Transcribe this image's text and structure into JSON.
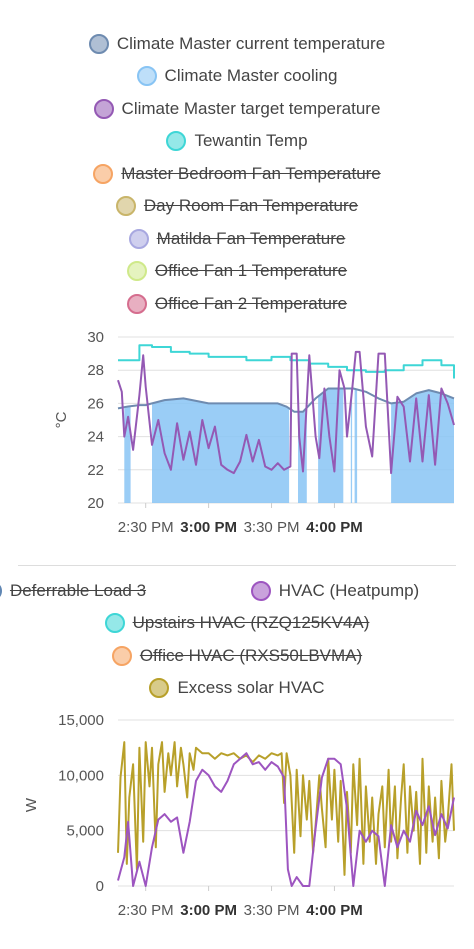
{
  "colors": {
    "current": "#6e8bb0",
    "cooling": "#88c4f4",
    "target": "#9459b4",
    "tewantin": "#3ed6d6",
    "master_fan": "#f6a463",
    "day_fan": "#c9b56a",
    "matilda": "#a8a8e0",
    "office1": "#cfe98a",
    "office2": "#d56d8e",
    "deferrable": "#5f86b3",
    "hvac": "#9d55c0",
    "upstairs": "#3ed6d6",
    "office_hvac": "#f6a463",
    "excess": "#b8a02a"
  },
  "chart_data": [
    {
      "type": "line",
      "ylabel": "°C",
      "ylim": [
        20,
        30
      ],
      "yticks": [
        "30",
        "28",
        "26",
        "24",
        "22",
        "20"
      ],
      "xticks": [
        {
          "label": "2:30 PM",
          "bold": false
        },
        {
          "label": "3:00 PM",
          "bold": true
        },
        {
          "label": "3:30 PM",
          "bold": false
        },
        {
          "label": "4:00 PM",
          "bold": true
        }
      ],
      "xlim_minutes": [
        14.25,
        16.95
      ],
      "legend": [
        {
          "name": "Climate Master current temperature",
          "color_key": "current",
          "hidden": false
        },
        {
          "name": "Climate Master cooling",
          "color_key": "cooling",
          "hidden": false
        },
        {
          "name": "Climate Master target temperature",
          "color_key": "target",
          "hidden": false
        },
        {
          "name": "Tewantin Temp",
          "color_key": "tewantin",
          "hidden": false
        },
        {
          "name": "Master Bedroom Fan Temperature",
          "color_key": "master_fan",
          "hidden": true
        },
        {
          "name": "Day Room Fan Temperature",
          "color_key": "day_fan",
          "hidden": true
        },
        {
          "name": "Matilda Fan Temperature",
          "color_key": "matilda",
          "hidden": true
        },
        {
          "name": "Office Fan 1 Temperature",
          "color_key": "office1",
          "hidden": true
        },
        {
          "name": "Office Fan 2 Temperature",
          "color_key": "office2",
          "hidden": true
        }
      ],
      "cooling_spans_hours": [
        [
          14.33,
          14.38
        ],
        [
          14.55,
          15.64
        ],
        [
          15.71,
          15.78
        ],
        [
          15.87,
          16.07
        ],
        [
          16.13,
          16.14
        ],
        [
          16.16,
          16.18
        ],
        [
          16.45,
          16.95
        ]
      ],
      "series": [
        {
          "name": "Climate Master current temperature",
          "x": [
            14.28,
            14.35,
            14.45,
            14.5,
            14.55,
            14.65,
            14.8,
            15.0,
            15.2,
            15.4,
            15.55,
            15.62,
            15.68,
            15.75,
            15.85,
            15.95,
            16.05,
            16.15,
            16.25,
            16.35,
            16.45,
            16.55,
            16.65,
            16.75,
            16.85,
            16.95
          ],
          "y": [
            25.7,
            25.8,
            25.9,
            25.9,
            26.0,
            26.2,
            26.3,
            26.0,
            26.0,
            26.0,
            26.0,
            25.8,
            25.5,
            25.5,
            26.3,
            26.9,
            26.9,
            26.9,
            26.7,
            26.3,
            26.0,
            26.1,
            26.6,
            26.8,
            26.6,
            26.3
          ]
        },
        {
          "name": "Tewantin Temp",
          "x": [
            14.28,
            14.44,
            14.45,
            14.55,
            14.7,
            14.85,
            15.0,
            15.15,
            15.3,
            15.5,
            15.65,
            15.8,
            15.95,
            16.1,
            16.25,
            16.4,
            16.55,
            16.7,
            16.85,
            16.95
          ],
          "y": [
            28.6,
            28.6,
            29.5,
            29.4,
            29.1,
            29.0,
            28.8,
            28.8,
            28.6,
            28.8,
            28.6,
            28.4,
            28.2,
            28.0,
            27.9,
            28.0,
            28.3,
            28.6,
            28.3,
            27.5
          ]
        },
        {
          "name": "Climate Master target temperature",
          "x": [
            14.28,
            14.31,
            14.33,
            14.36,
            14.4,
            14.45,
            14.48,
            14.5,
            14.55,
            14.6,
            14.65,
            14.7,
            14.75,
            14.8,
            14.85,
            14.9,
            14.95,
            15.0,
            15.05,
            15.1,
            15.15,
            15.2,
            15.25,
            15.3,
            15.35,
            15.4,
            15.45,
            15.5,
            15.55,
            15.6,
            15.65,
            15.66,
            15.7,
            15.72,
            15.75,
            15.8,
            15.85,
            15.88,
            15.92,
            15.96,
            16.0,
            16.04,
            16.08,
            16.1,
            16.14,
            16.17,
            16.2,
            16.25,
            16.3,
            16.35,
            16.4,
            16.45,
            16.5,
            16.55,
            16.6,
            16.65,
            16.7,
            16.75,
            16.8,
            16.85,
            16.9,
            16.95
          ],
          "y": [
            27.4,
            26.7,
            24.0,
            25.2,
            23.2,
            26.5,
            28.9,
            27.0,
            23.5,
            25.0,
            23.0,
            22.0,
            24.8,
            22.6,
            24.3,
            22.3,
            25.0,
            23.3,
            24.6,
            22.3,
            22.0,
            21.8,
            22.5,
            24.1,
            22.5,
            23.8,
            22.2,
            22.0,
            22.4,
            22.0,
            22.2,
            29.0,
            29.0,
            24.0,
            21.9,
            28.9,
            24.0,
            22.7,
            26.9,
            24.0,
            21.9,
            28.0,
            26.9,
            24.0,
            26.8,
            29.1,
            29.1,
            24.6,
            22.8,
            29.0,
            29.0,
            21.8,
            26.4,
            25.8,
            22.5,
            26.3,
            22.5,
            26.5,
            22.3,
            26.9,
            26.0,
            24.7
          ]
        }
      ]
    },
    {
      "type": "line",
      "ylabel": "W",
      "ylim": [
        0,
        15000
      ],
      "yticks": [
        "15,000",
        "10,000",
        "5,000",
        "0"
      ],
      "xticks": [
        {
          "label": "2:30 PM",
          "bold": false
        },
        {
          "label": "3:00 PM",
          "bold": true
        },
        {
          "label": "3:30 PM",
          "bold": false
        },
        {
          "label": "4:00 PM",
          "bold": true
        }
      ],
      "legend": [
        {
          "name": "Deferrable Load 3",
          "color_key": "deferrable",
          "hidden": true
        },
        {
          "name": "HVAC (Heatpump)",
          "color_key": "hvac",
          "hidden": false
        },
        {
          "name": "Upstairs HVAC (RZQ125KV4A)",
          "color_key": "upstairs",
          "hidden": true
        },
        {
          "name": "Office HVAC (RXS50LBVMA)",
          "color_key": "office_hvac",
          "hidden": true
        },
        {
          "name": "Excess solar HVAC",
          "color_key": "excess",
          "hidden": false
        }
      ],
      "series": [
        {
          "name": "HVAC (Heatpump)",
          "x": [
            14.28,
            14.33,
            14.36,
            14.4,
            14.45,
            14.5,
            14.55,
            14.6,
            14.65,
            14.7,
            14.75,
            14.8,
            14.85,
            14.9,
            14.95,
            15.0,
            15.05,
            15.1,
            15.15,
            15.2,
            15.25,
            15.3,
            15.35,
            15.4,
            15.45,
            15.5,
            15.55,
            15.6,
            15.63,
            15.66,
            15.7,
            15.75,
            15.8,
            15.85,
            15.9,
            15.95,
            16.0,
            16.05,
            16.1,
            16.15,
            16.2,
            16.25,
            16.3,
            16.35,
            16.4,
            16.45,
            16.5,
            16.55,
            16.6,
            16.65,
            16.7,
            16.75,
            16.8,
            16.85,
            16.9,
            16.95
          ],
          "y": [
            500,
            2600,
            5800,
            0,
            2200,
            0,
            3500,
            6000,
            6500,
            5800,
            6200,
            3000,
            5800,
            9500,
            10500,
            10000,
            9000,
            8500,
            9500,
            11000,
            11500,
            12000,
            11000,
            11200,
            10500,
            11200,
            10800,
            9800,
            1500,
            0,
            800,
            0,
            0,
            5200,
            9800,
            11500,
            11500,
            11000,
            7000,
            0,
            5000,
            4000,
            5000,
            4500,
            0,
            5500,
            3500,
            5000,
            4000,
            6800,
            5500,
            7200,
            4600,
            6500,
            5200,
            8000
          ]
        },
        {
          "name": "Excess solar HVAC",
          "x": [
            14.28,
            14.3,
            14.33,
            14.35,
            14.37,
            14.4,
            14.43,
            14.45,
            14.48,
            14.5,
            14.53,
            14.55,
            14.58,
            14.6,
            14.63,
            14.65,
            14.68,
            14.7,
            14.73,
            14.75,
            14.78,
            14.8,
            14.83,
            14.85,
            14.88,
            14.9,
            14.95,
            15.0,
            15.05,
            15.1,
            15.15,
            15.2,
            15.25,
            15.3,
            15.35,
            15.4,
            15.45,
            15.5,
            15.55,
            15.58,
            15.6,
            15.62,
            15.65,
            15.68,
            15.7,
            15.73,
            15.75,
            15.78,
            15.8,
            15.83,
            15.85,
            15.88,
            15.9,
            15.93,
            15.95,
            15.98,
            16.0,
            16.03,
            16.05,
            16.08,
            16.1,
            16.13,
            16.15,
            16.18,
            16.2,
            16.23,
            16.25,
            16.28,
            16.3,
            16.33,
            16.35,
            16.38,
            16.4,
            16.43,
            16.45,
            16.48,
            16.5,
            16.53,
            16.55,
            16.58,
            16.6,
            16.63,
            16.65,
            16.68,
            16.7,
            16.73,
            16.75,
            16.78,
            16.8,
            16.83,
            16.85,
            16.88,
            16.9,
            16.93,
            16.95
          ],
          "y": [
            3000,
            9800,
            13000,
            2000,
            8000,
            11000,
            1500,
            12500,
            4000,
            13000,
            9000,
            12500,
            3500,
            11000,
            13000,
            8500,
            12000,
            10000,
            13000,
            9000,
            12500,
            11000,
            8000,
            12000,
            10500,
            12500,
            12000,
            12000,
            11500,
            12000,
            11800,
            12000,
            11500,
            11800,
            11200,
            11800,
            11500,
            12000,
            11800,
            12000,
            7500,
            12000,
            10000,
            3000,
            10500,
            4500,
            10000,
            6000,
            9500,
            3000,
            5500,
            10000,
            7000,
            3500,
            11500,
            6000,
            10500,
            4000,
            9500,
            1000,
            8500,
            3000,
            11000,
            5500,
            11500,
            2000,
            9000,
            4000,
            8000,
            2000,
            6500,
            9000,
            3500,
            10500,
            4000,
            9000,
            2500,
            8000,
            11000,
            3000,
            9000,
            5000,
            8500,
            2000,
            11500,
            3000,
            9000,
            4000,
            8000,
            2500,
            9500,
            4000,
            6000,
            11000,
            5000
          ]
        }
      ]
    }
  ]
}
